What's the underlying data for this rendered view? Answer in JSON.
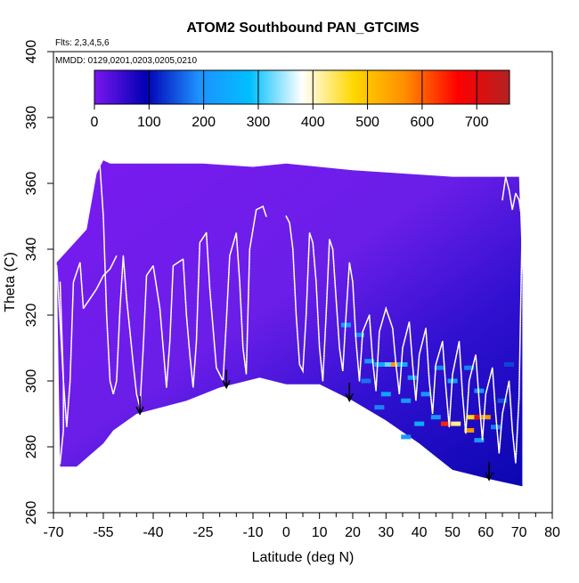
{
  "chart_data": {
    "type": "heatmap",
    "title": "ATOM2 Southbound PAN_GTCIMS",
    "xlabel": "Latitude (deg N)",
    "ylabel": "Theta (C)",
    "flights_text": "Flts: 2,3,4,5,6",
    "dates_text": "MMDD: 0129,0201,0203,0205,0210",
    "xlim": [
      -70,
      80
    ],
    "ylim": [
      260,
      400
    ],
    "x_ticks": [
      -70,
      -55,
      -40,
      -25,
      -10,
      0,
      10,
      20,
      30,
      40,
      50,
      60,
      70,
      80
    ],
    "x_tick_labels": [
      "-70",
      "-55",
      "-40",
      "-25",
      "-10",
      "0",
      "10",
      "20",
      "30",
      "40",
      "50",
      "60",
      "70",
      "80"
    ],
    "x_minor_ticks": [
      -65,
      -60,
      -50,
      -45,
      -35,
      -30,
      -20,
      -15,
      -5,
      5,
      15,
      25,
      35,
      45,
      55,
      65,
      75
    ],
    "y_ticks": [
      260,
      280,
      300,
      320,
      340,
      360,
      380,
      400
    ],
    "y_tick_labels": [
      "260",
      "280",
      "300",
      "320",
      "340",
      "360",
      "380",
      "400"
    ],
    "colorbar": {
      "min": 0,
      "max": 760,
      "ticks": [
        0,
        100,
        200,
        300,
        400,
        500,
        600,
        700
      ],
      "tick_labels": [
        "0",
        "100",
        "200",
        "300",
        "400",
        "500",
        "600",
        "700"
      ],
      "colors": [
        "#7a17f0",
        "#0000b4",
        "#1e90ff",
        "#00bfff",
        "#ffffff",
        "#ffd700",
        "#ff8c00",
        "#ff0000",
        "#b22222"
      ]
    },
    "region": {
      "top": [
        [
          -69,
          336
        ],
        [
          -60,
          346
        ],
        [
          -57,
          363
        ],
        [
          -55,
          367
        ],
        [
          -53,
          366
        ],
        [
          -25,
          366
        ],
        [
          -10,
          365
        ],
        [
          0,
          366
        ],
        [
          20,
          364
        ],
        [
          50,
          362
        ],
        [
          70,
          362
        ],
        [
          71,
          332
        ]
      ],
      "bottom": [
        [
          71,
          268
        ],
        [
          62,
          270
        ],
        [
          50,
          273
        ],
        [
          40,
          281
        ],
        [
          30,
          288
        ],
        [
          20,
          294
        ],
        [
          10,
          299
        ],
        [
          0,
          299
        ],
        [
          -8,
          301
        ],
        [
          -20,
          298
        ],
        [
          -30,
          294
        ],
        [
          -45,
          290
        ],
        [
          -52,
          285
        ],
        [
          -55,
          281
        ],
        [
          -63,
          274
        ],
        [
          -68,
          274
        ]
      ]
    },
    "cells": [
      {
        "lat": 18,
        "theta": 317,
        "value": 230
      },
      {
        "lat": 22,
        "theta": 314,
        "value": 190
      },
      {
        "lat": 25,
        "theta": 306,
        "value": 210
      },
      {
        "lat": 28,
        "theta": 305,
        "value": 240
      },
      {
        "lat": 31,
        "theta": 305,
        "value": 320
      },
      {
        "lat": 33,
        "theta": 305,
        "value": 560
      },
      {
        "lat": 35,
        "theta": 305,
        "value": 260
      },
      {
        "lat": 38,
        "theta": 301,
        "value": 200
      },
      {
        "lat": 30,
        "theta": 296,
        "value": 230
      },
      {
        "lat": 36,
        "theta": 294,
        "value": 210
      },
      {
        "lat": 42,
        "theta": 296,
        "value": 200
      },
      {
        "lat": 46,
        "theta": 304,
        "value": 180
      },
      {
        "lat": 50,
        "theta": 300,
        "value": 220
      },
      {
        "lat": 55,
        "theta": 304,
        "value": 180
      },
      {
        "lat": 58,
        "theta": 297,
        "value": 200
      },
      {
        "lat": 45,
        "theta": 289,
        "value": 200
      },
      {
        "lat": 48,
        "theta": 287,
        "value": 640
      },
      {
        "lat": 51,
        "theta": 287,
        "value": 420
      },
      {
        "lat": 55,
        "theta": 285,
        "value": 560
      },
      {
        "lat": 56,
        "theta": 289,
        "value": 470
      },
      {
        "lat": 58,
        "theta": 289,
        "value": 700
      },
      {
        "lat": 60,
        "theta": 289,
        "value": 560
      },
      {
        "lat": 40,
        "theta": 287,
        "value": 250
      },
      {
        "lat": 36,
        "theta": 283,
        "value": 210
      },
      {
        "lat": 58,
        "theta": 282,
        "value": 200
      },
      {
        "lat": 63,
        "theta": 286,
        "value": 180
      },
      {
        "lat": 65,
        "theta": 294,
        "value": 150
      },
      {
        "lat": 67,
        "theta": 305,
        "value": 140
      },
      {
        "lat": 24,
        "theta": 300,
        "value": 170
      },
      {
        "lat": 28,
        "theta": 292,
        "value": 180
      }
    ],
    "arrows": [
      {
        "lat": -44,
        "theta_tip": 290
      },
      {
        "lat": -18,
        "theta_tip": 298
      },
      {
        "lat": 19,
        "theta_tip": 294
      },
      {
        "lat": 61,
        "theta_tip": 270
      }
    ],
    "profiles": [
      {
        "points": [
          [
            -68,
            330
          ],
          [
            -67,
            300
          ],
          [
            -66,
            286
          ],
          [
            -65,
            300
          ],
          [
            -64,
            330
          ],
          [
            -62,
            336
          ],
          [
            -61,
            322
          ],
          [
            -59,
            325
          ],
          [
            -57,
            328
          ],
          [
            -55,
            332
          ],
          [
            -53,
            334
          ],
          [
            -51,
            338
          ]
        ]
      },
      {
        "points": [
          [
            -56,
            365
          ],
          [
            -55,
            350
          ],
          [
            -54,
            320
          ],
          [
            -53,
            300
          ],
          [
            -52,
            296
          ],
          [
            -51,
            300
          ],
          [
            -50,
            322
          ],
          [
            -49,
            338
          ],
          [
            -48,
            325
          ],
          [
            -47,
            315
          ],
          [
            -46,
            305
          ],
          [
            -45,
            296
          ],
          [
            -44,
            292
          ]
        ]
      },
      {
        "points": [
          [
            -44,
            292
          ],
          [
            -43,
            310
          ],
          [
            -42,
            332
          ],
          [
            -40,
            335
          ],
          [
            -38,
            322
          ],
          [
            -37,
            310
          ],
          [
            -36,
            298
          ],
          [
            -35,
            312
          ],
          [
            -34,
            335
          ],
          [
            -31,
            337
          ],
          [
            -30,
            320
          ],
          [
            -29,
            308
          ],
          [
            -28,
            298
          ],
          [
            -27,
            312
          ],
          [
            -26,
            342
          ],
          [
            -24,
            345
          ],
          [
            -23,
            328
          ],
          [
            -22,
            316
          ],
          [
            -21,
            304
          ],
          [
            -19,
            300
          ],
          [
            -18,
            318
          ],
          [
            -17,
            338
          ],
          [
            -15,
            345
          ],
          [
            -14,
            330
          ],
          [
            -13,
            310
          ],
          [
            -12,
            302
          ],
          [
            -11,
            340
          ],
          [
            -9,
            352
          ],
          [
            -7,
            353
          ],
          [
            -6,
            350
          ]
        ]
      },
      {
        "points": [
          [
            0,
            350
          ],
          [
            1,
            348
          ],
          [
            2,
            340
          ],
          [
            3,
            320
          ],
          [
            4,
            305
          ],
          [
            5,
            303
          ],
          [
            6,
            320
          ],
          [
            7,
            345
          ],
          [
            8,
            342
          ],
          [
            9,
            330
          ],
          [
            10,
            310
          ],
          [
            11,
            300
          ],
          [
            12,
            320
          ],
          [
            13,
            343
          ],
          [
            14,
            340
          ],
          [
            15,
            325
          ],
          [
            16,
            310
          ],
          [
            17,
            303
          ],
          [
            18,
            320
          ],
          [
            19,
            336
          ],
          [
            20,
            330
          ],
          [
            21,
            312
          ],
          [
            22,
            300
          ],
          [
            23,
            315
          ],
          [
            25,
            320
          ],
          [
            26,
            306
          ],
          [
            27,
            297
          ],
          [
            28,
            315
          ],
          [
            30,
            322
          ],
          [
            32,
            316
          ],
          [
            33,
            305
          ],
          [
            34,
            296
          ],
          [
            35,
            310
          ],
          [
            37,
            318
          ],
          [
            38,
            305
          ],
          [
            39,
            294
          ],
          [
            40,
            308
          ],
          [
            42,
            316
          ],
          [
            43,
            300
          ],
          [
            44,
            290
          ],
          [
            45,
            305
          ],
          [
            47,
            312
          ],
          [
            48,
            298
          ],
          [
            49,
            286
          ],
          [
            50,
            302
          ],
          [
            52,
            312
          ],
          [
            53,
            296
          ],
          [
            54,
            284
          ],
          [
            55,
            300
          ],
          [
            57,
            308
          ],
          [
            58,
            294
          ],
          [
            59,
            282
          ],
          [
            60,
            296
          ],
          [
            62,
            304
          ],
          [
            63,
            290
          ],
          [
            64,
            278
          ],
          [
            65,
            290
          ],
          [
            67,
            300
          ],
          [
            68,
            285
          ],
          [
            69,
            275
          ],
          [
            70,
            295
          ],
          [
            71,
            350
          ]
        ]
      },
      {
        "points": [
          [
            -69,
            335
          ],
          [
            -68,
            318
          ],
          [
            -67,
            300
          ],
          [
            -67,
            285
          ],
          [
            -68,
            275
          ]
        ]
      },
      {
        "points": [
          [
            65,
            355
          ],
          [
            66,
            362
          ],
          [
            67,
            358
          ],
          [
            68,
            352
          ],
          [
            69,
            357
          ],
          [
            70,
            355
          ],
          [
            71,
            348
          ]
        ]
      }
    ]
  }
}
